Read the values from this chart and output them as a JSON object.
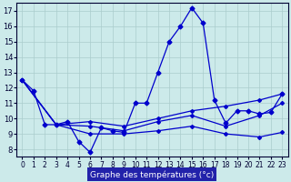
{
  "background_color": "#cceaea",
  "plot_bg_color": "#cceaea",
  "grid_color": "#aacccc",
  "line_color": "#0000cc",
  "xlabel": "Graphe des températures (°c)",
  "xlabel_bg": "#2222aa",
  "xlabel_fg": "#ffffff",
  "xlim": [
    -0.5,
    23.5
  ],
  "ylim": [
    7.5,
    17.5
  ],
  "yticks": [
    8,
    9,
    10,
    11,
    12,
    13,
    14,
    15,
    16,
    17
  ],
  "xticks": [
    0,
    1,
    2,
    3,
    4,
    5,
    6,
    7,
    8,
    9,
    10,
    11,
    12,
    13,
    14,
    15,
    16,
    17,
    18,
    19,
    20,
    21,
    22,
    23
  ],
  "series": [
    {
      "x": [
        0,
        1,
        2,
        3,
        4,
        5,
        6,
        7,
        8,
        9,
        10,
        11,
        12,
        13,
        14,
        15,
        16,
        17,
        18,
        19,
        20,
        21,
        22,
        23
      ],
      "y": [
        12.5,
        11.8,
        9.6,
        9.6,
        9.8,
        8.5,
        7.8,
        9.4,
        9.2,
        9.1,
        11.0,
        11.0,
        13.0,
        15.0,
        16.0,
        17.2,
        16.2,
        11.2,
        9.7,
        10.5,
        10.5,
        10.3,
        10.4,
        11.6
      ]
    },
    {
      "x": [
        0,
        3,
        6,
        9,
        12,
        15,
        18,
        21,
        23
      ],
      "y": [
        12.5,
        9.6,
        9.8,
        9.5,
        10.0,
        10.5,
        10.8,
        11.2,
        11.6
      ]
    },
    {
      "x": [
        0,
        3,
        6,
        9,
        12,
        15,
        18,
        21,
        23
      ],
      "y": [
        12.5,
        9.6,
        9.0,
        9.0,
        9.2,
        9.5,
        9.0,
        8.8,
        9.1
      ]
    },
    {
      "x": [
        0,
        3,
        6,
        9,
        12,
        15,
        18,
        21,
        23
      ],
      "y": [
        12.5,
        9.6,
        9.5,
        9.2,
        9.8,
        10.2,
        9.5,
        10.2,
        11.0
      ]
    }
  ]
}
